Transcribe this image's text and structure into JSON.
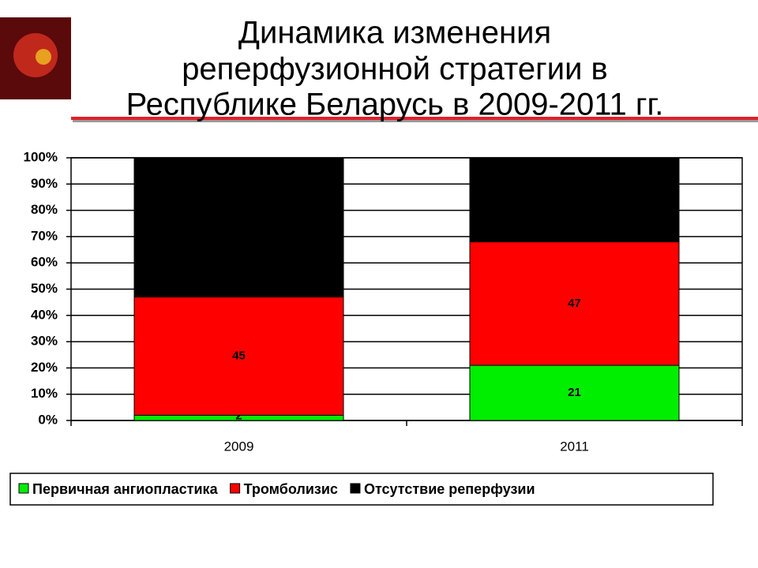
{
  "chart_data": {
    "type": "stacked_bar",
    "title": [
      "Динамика изменения",
      "реперфузионной стратегии в",
      "Республике Беларусь в 2009-2011 гг."
    ],
    "categories": [
      "2009",
      "2011"
    ],
    "series": [
      {
        "name": "Первичная ангиопластика",
        "color": "#00ee00",
        "values": [
          2,
          21
        ],
        "show_values": true
      },
      {
        "name": "Тромболизис",
        "color": "#ff0000",
        "values": [
          45,
          47
        ],
        "show_values": true
      },
      {
        "name": "Отсутствие реперфузии",
        "color": "#000000",
        "values": [
          53,
          32
        ],
        "show_values": false
      }
    ],
    "ylim": [
      0,
      100
    ],
    "yticks": [
      {
        "value": 0,
        "label": "0%"
      },
      {
        "value": 10,
        "label": "10%"
      },
      {
        "value": 20,
        "label": "20%"
      },
      {
        "value": 30,
        "label": "30%"
      },
      {
        "value": 40,
        "label": "40%"
      },
      {
        "value": 50,
        "label": "50%"
      },
      {
        "value": 60,
        "label": "60%"
      },
      {
        "value": 70,
        "label": "70%"
      },
      {
        "value": 80,
        "label": "80%"
      },
      {
        "value": 90,
        "label": "90%"
      },
      {
        "value": 100,
        "label": "100%"
      }
    ],
    "grid": true,
    "legend": "bottom"
  }
}
